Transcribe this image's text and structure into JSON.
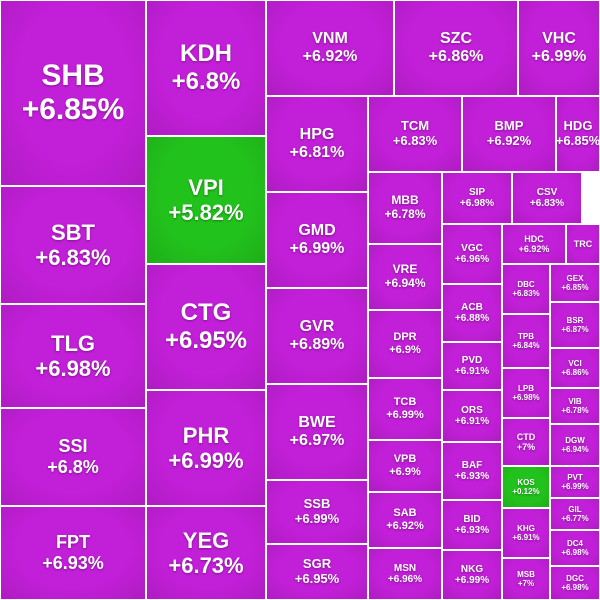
{
  "colors": {
    "up": "#c21fd8",
    "neutral": "#22c21c",
    "border": "#ffffff",
    "text": "#ffffff"
  },
  "tiles": [
    {
      "symbol": "SHB",
      "change": "+6.85%",
      "tone": "up"
    },
    {
      "symbol": "SBT",
      "change": "+6.83%",
      "tone": "up"
    },
    {
      "symbol": "TLG",
      "change": "+6.98%",
      "tone": "up"
    },
    {
      "symbol": "SSI",
      "change": "+6.8%",
      "tone": "up"
    },
    {
      "symbol": "FPT",
      "change": "+6.93%",
      "tone": "up"
    },
    {
      "symbol": "KDH",
      "change": "+6.8%",
      "tone": "up"
    },
    {
      "symbol": "VPI",
      "change": "+5.82%",
      "tone": "neutral"
    },
    {
      "symbol": "CTG",
      "change": "+6.95%",
      "tone": "up"
    },
    {
      "symbol": "PHR",
      "change": "+6.99%",
      "tone": "up"
    },
    {
      "symbol": "YEG",
      "change": "+6.73%",
      "tone": "up"
    },
    {
      "symbol": "VNM",
      "change": "+6.92%",
      "tone": "up"
    },
    {
      "symbol": "SZC",
      "change": "+6.86%",
      "tone": "up"
    },
    {
      "symbol": "VHC",
      "change": "+6.99%",
      "tone": "up"
    },
    {
      "symbol": "HPG",
      "change": "+6.81%",
      "tone": "up"
    },
    {
      "symbol": "GMD",
      "change": "+6.99%",
      "tone": "up"
    },
    {
      "symbol": "GVR",
      "change": "+6.89%",
      "tone": "up"
    },
    {
      "symbol": "BWE",
      "change": "+6.97%",
      "tone": "up"
    },
    {
      "symbol": "SSB",
      "change": "+6.99%",
      "tone": "up"
    },
    {
      "symbol": "SGR",
      "change": "+6.95%",
      "tone": "up"
    },
    {
      "symbol": "TCM",
      "change": "+6.83%",
      "tone": "up"
    },
    {
      "symbol": "BMP",
      "change": "+6.92%",
      "tone": "up"
    },
    {
      "symbol": "HDG",
      "change": "+6.85%",
      "tone": "up"
    },
    {
      "symbol": "MBB",
      "change": "+6.78%",
      "tone": "up"
    },
    {
      "symbol": "VRE",
      "change": "+6.94%",
      "tone": "up"
    },
    {
      "symbol": "DPR",
      "change": "+6.9%",
      "tone": "up"
    },
    {
      "symbol": "TCB",
      "change": "+6.99%",
      "tone": "up"
    },
    {
      "symbol": "VPB",
      "change": "+6.9%",
      "tone": "up"
    },
    {
      "symbol": "SAB",
      "change": "+6.92%",
      "tone": "up"
    },
    {
      "symbol": "MSN",
      "change": "+6.96%",
      "tone": "up"
    },
    {
      "symbol": "SIP",
      "change": "+6.98%",
      "tone": "up"
    },
    {
      "symbol": "CSV",
      "change": "+6.83%",
      "tone": "up"
    },
    {
      "symbol": "VGC",
      "change": "+6.96%",
      "tone": "up"
    },
    {
      "symbol": "HDC",
      "change": "+6.92%",
      "tone": "up"
    },
    {
      "symbol": "TRC",
      "change": "",
      "tone": "up"
    },
    {
      "symbol": "ACB",
      "change": "+6.88%",
      "tone": "up"
    },
    {
      "symbol": "PVD",
      "change": "+6.91%",
      "tone": "up"
    },
    {
      "symbol": "ORS",
      "change": "+6.91%",
      "tone": "up"
    },
    {
      "symbol": "BAF",
      "change": "+6.93%",
      "tone": "up"
    },
    {
      "symbol": "BID",
      "change": "+6.93%",
      "tone": "up"
    },
    {
      "symbol": "NKG",
      "change": "+6.99%",
      "tone": "up"
    },
    {
      "symbol": "DBC",
      "change": "+6.83%",
      "tone": "up"
    },
    {
      "symbol": "GEX",
      "change": "+6.85%",
      "tone": "up"
    },
    {
      "symbol": "BSR",
      "change": "+6.87%",
      "tone": "up"
    },
    {
      "symbol": "TPB",
      "change": "+6.84%",
      "tone": "up"
    },
    {
      "symbol": "VCI",
      "change": "+6.86%",
      "tone": "up"
    },
    {
      "symbol": "LPB",
      "change": "+6.98%",
      "tone": "up"
    },
    {
      "symbol": "VIB",
      "change": "+6.78%",
      "tone": "up"
    },
    {
      "symbol": "CTD",
      "change": "+7%",
      "tone": "up"
    },
    {
      "symbol": "DGW",
      "change": "+6.94%",
      "tone": "up"
    },
    {
      "symbol": "KOS",
      "change": "+0.12%",
      "tone": "neutral"
    },
    {
      "symbol": "PVT",
      "change": "+6.99%",
      "tone": "up"
    },
    {
      "symbol": "KHG",
      "change": "+6.91%",
      "tone": "up"
    },
    {
      "symbol": "GIL",
      "change": "+6.77%",
      "tone": "up"
    },
    {
      "symbol": "DC4",
      "change": "+6.98%",
      "tone": "up"
    },
    {
      "symbol": "MSB",
      "change": "+7%",
      "tone": "up"
    },
    {
      "symbol": "DGC",
      "change": "+6.98%",
      "tone": "up"
    }
  ]
}
